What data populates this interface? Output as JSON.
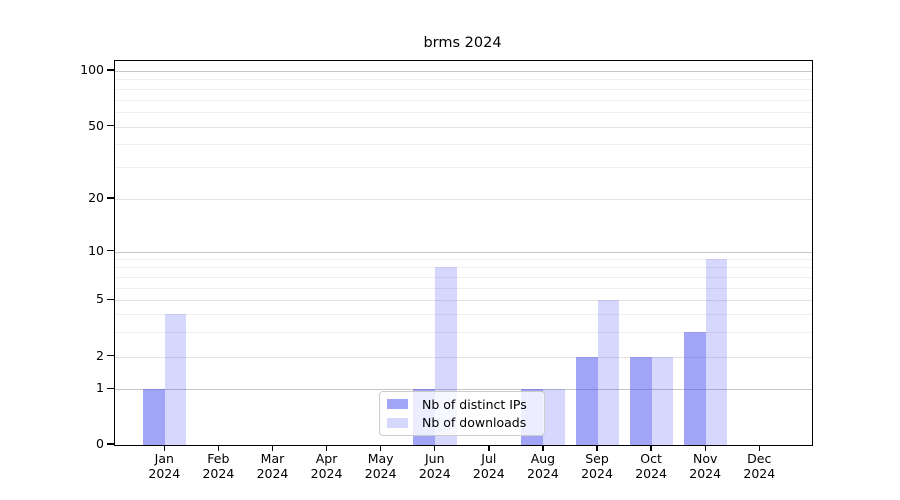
{
  "title": "brms 2024",
  "legend": {
    "items": [
      {
        "label": "Nb of distinct IPs",
        "series": "ips"
      },
      {
        "label": "Nb of downloads",
        "series": "downloads"
      }
    ]
  },
  "axes": {
    "y_tick_labels": [
      "100",
      "50",
      "20",
      "10",
      "5",
      "2",
      "1",
      "0"
    ],
    "x_tick_labels": [
      [
        "Jan",
        "2024"
      ],
      [
        "Feb",
        "2024"
      ],
      [
        "Mar",
        "2024"
      ],
      [
        "Apr",
        "2024"
      ],
      [
        "May",
        "2024"
      ],
      [
        "Jun",
        "2024"
      ],
      [
        "Jul",
        "2024"
      ],
      [
        "Aug",
        "2024"
      ],
      [
        "Sep",
        "2024"
      ],
      [
        "Oct",
        "2024"
      ],
      [
        "Nov",
        "2024"
      ],
      [
        "Dec",
        "2024"
      ]
    ]
  },
  "colors": {
    "bar_ips": "rgba(70,75,240,0.5)",
    "bar_downloads": "rgba(70,75,240,0.22)",
    "bar_ips_flat": "#a8aaf7",
    "bar_downloads_flat": "#dadcf9",
    "grid_major_dark": "#c6c6c6",
    "grid_major_light": "#e4e4e4",
    "grid_minor": "#efefef",
    "axis": "#000000",
    "legend_border": "#cccccc"
  },
  "chart_data": {
    "type": "bar",
    "title": "brms 2024",
    "categories": [
      "Jan 2024",
      "Feb 2024",
      "Mar 2024",
      "Apr 2024",
      "May 2024",
      "Jun 2024",
      "Jul 2024",
      "Aug 2024",
      "Sep 2024",
      "Oct 2024",
      "Nov 2024",
      "Dec 2024"
    ],
    "series": [
      {
        "name": "Nb of distinct IPs",
        "values": [
          1,
          0,
          0,
          0,
          0,
          1,
          0,
          1,
          2,
          2,
          3,
          0
        ]
      },
      {
        "name": "Nb of downloads",
        "values": [
          4,
          0,
          0,
          0,
          0,
          8,
          0,
          1,
          5,
          2,
          9,
          0
        ]
      }
    ],
    "xlabel": "",
    "ylabel": "",
    "yscale": "asinh-like (linear 0-1, log above)",
    "y_ticks": [
      0,
      1,
      2,
      5,
      10,
      20,
      50,
      100
    ],
    "y_minor_ticks": [
      3,
      4,
      6,
      7,
      8,
      9,
      30,
      40,
      60,
      70,
      80,
      90
    ],
    "ylim": [
      0,
      110
    ],
    "grid": "horizontal, major + minor",
    "legend_position": "lower center"
  }
}
